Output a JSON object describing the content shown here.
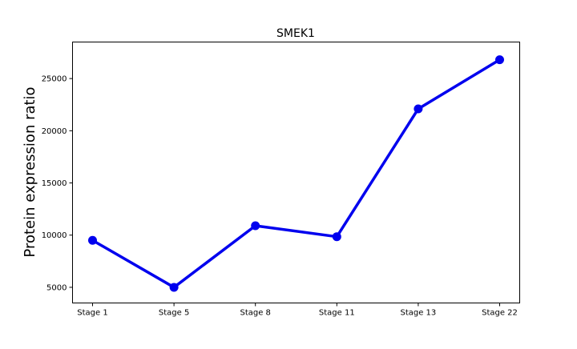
{
  "chart_data": {
    "type": "line",
    "title": "SMEK1",
    "xlabel": "",
    "ylabel": "Protein expression ratio",
    "categories": [
      "Stage 1",
      "Stage 5",
      "Stage 8",
      "Stage 11",
      "Stage 13",
      "Stage 22"
    ],
    "series": [
      {
        "values": [
          9500,
          5000,
          10900,
          9850,
          22100,
          26800
        ],
        "color": "#0000ee"
      }
    ],
    "yticks": [
      5000,
      10000,
      15000,
      20000,
      25000
    ],
    "ytick_labels": [
      "5000",
      "10000",
      "15000",
      "20000",
      "25000"
    ],
    "ylim": [
      3500,
      28500
    ],
    "grid": false,
    "legend": "none"
  }
}
